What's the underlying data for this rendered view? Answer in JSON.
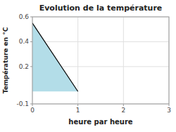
{
  "chart_data": {
    "type": "area",
    "title": "Evolution de la température",
    "x_label": "heure par heure",
    "y_label": "Température en °C",
    "xlim": [
      0,
      3
    ],
    "ylim": [
      -0.1,
      0.6
    ],
    "xticks": [
      0,
      1,
      2,
      3
    ],
    "yticks": [
      -0.1,
      0.2,
      0.4,
      0.6
    ],
    "grid": true,
    "series": [
      {
        "type": "area",
        "color": "#b3dde8",
        "x": [
          0,
          1,
          0
        ],
        "values": [
          0.55,
          0.0,
          0.0
        ]
      },
      {
        "type": "line",
        "color": "#000000",
        "x": [
          0,
          1
        ],
        "values": [
          0.55,
          0.0
        ]
      }
    ]
  }
}
